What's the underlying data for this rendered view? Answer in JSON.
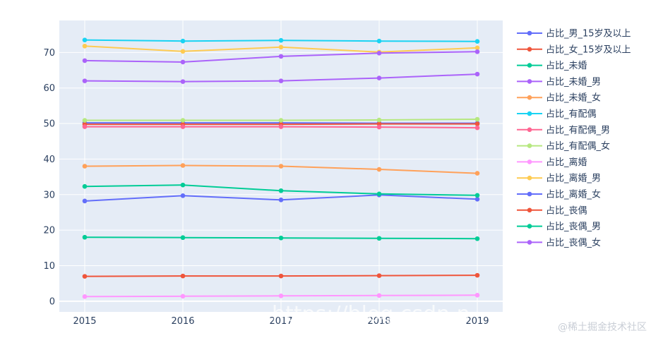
{
  "chart_data": {
    "type": "line",
    "x": [
      2015,
      2016,
      2017,
      2018,
      2019
    ],
    "x_tick_labels": [
      "2015",
      "2016",
      "2017",
      "2018",
      "2019"
    ],
    "ylim": [
      -3,
      79
    ],
    "y_ticks": [
      0,
      10,
      20,
      30,
      40,
      50,
      60,
      70
    ],
    "grid": true,
    "legend_position": "right",
    "series": [
      {
        "name": "占比_男_15岁及以上",
        "color": "#636efa",
        "values": [
          50.2,
          50.2,
          50.2,
          50.1,
          50.1
        ]
      },
      {
        "name": "占比_女_15岁及以上",
        "color": "#ef553b",
        "values": [
          49.8,
          49.8,
          49.8,
          49.9,
          49.9
        ]
      },
      {
        "name": "占比_未婚",
        "color": "#00cc96",
        "values": [
          18.0,
          17.9,
          17.8,
          17.7,
          17.6
        ]
      },
      {
        "name": "占比_未婚_男",
        "color": "#ab63fa",
        "values": [
          62.0,
          61.8,
          62.0,
          62.8,
          63.9
        ]
      },
      {
        "name": "占比_未婚_女",
        "color": "#ffa15a",
        "values": [
          38.0,
          38.2,
          38.0,
          37.1,
          36.0
        ]
      },
      {
        "name": "占比_有配偶",
        "color": "#19d3f3",
        "values": [
          73.5,
          73.2,
          73.4,
          73.2,
          73.1
        ]
      },
      {
        "name": "占比_有配偶_男",
        "color": "#ff6692",
        "values": [
          49.1,
          49.1,
          49.1,
          49.0,
          48.8
        ]
      },
      {
        "name": "占比_有配偶_女",
        "color": "#b6e880",
        "values": [
          50.9,
          50.9,
          50.9,
          51.0,
          51.2
        ]
      },
      {
        "name": "占比_离婚",
        "color": "#ff97ff",
        "values": [
          1.3,
          1.4,
          1.5,
          1.6,
          1.7
        ]
      },
      {
        "name": "占比_离婚_男",
        "color": "#fecb52",
        "values": [
          71.8,
          70.3,
          71.5,
          70.1,
          71.3
        ]
      },
      {
        "name": "占比_离婚_女",
        "color": "#636efa",
        "values": [
          28.2,
          29.7,
          28.5,
          29.9,
          28.7
        ]
      },
      {
        "name": "占比_丧偶",
        "color": "#ef553b",
        "values": [
          7.0,
          7.1,
          7.1,
          7.2,
          7.3
        ]
      },
      {
        "name": "占比_丧偶_男",
        "color": "#00cc96",
        "values": [
          32.3,
          32.7,
          31.1,
          30.2,
          29.8
        ]
      },
      {
        "name": "占比_丧偶_女",
        "color": "#ab63fa",
        "values": [
          67.7,
          67.3,
          68.9,
          69.8,
          70.2
        ]
      }
    ]
  },
  "watermark": {
    "url_text": "https://blog.csdn.n",
    "credit_text": "@稀土掘金技术社区"
  }
}
